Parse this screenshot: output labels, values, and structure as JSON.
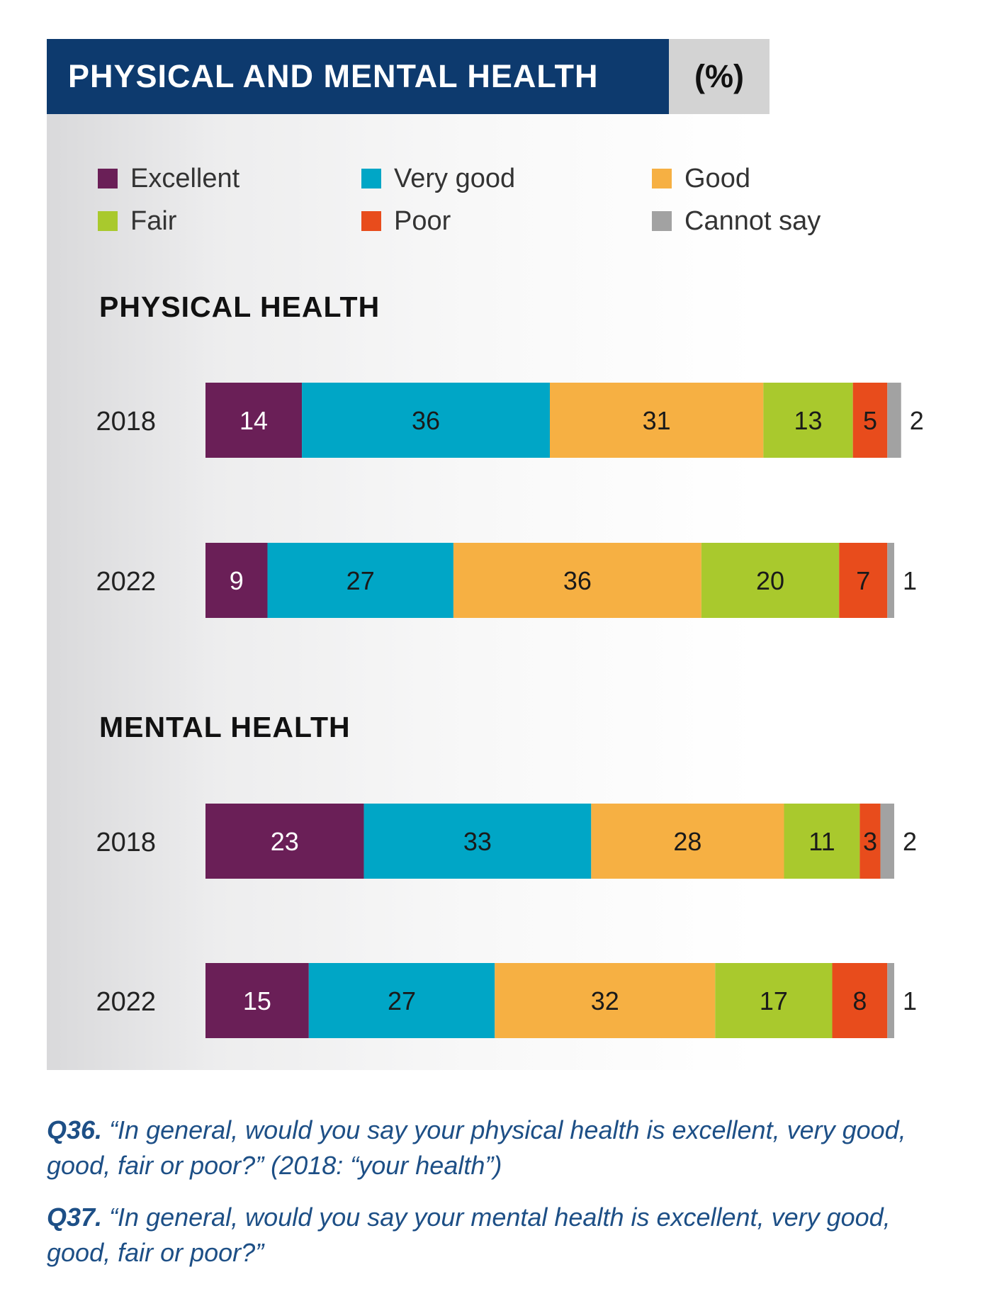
{
  "title": "PHYSICAL AND MENTAL HEALTH",
  "unit": "(%)",
  "legend": [
    {
      "label": "Excellent",
      "color": "#6a1f57"
    },
    {
      "label": "Very good",
      "color": "#00a6c6"
    },
    {
      "label": "Good",
      "color": "#f6b043"
    },
    {
      "label": "Fair",
      "color": "#a9c92d"
    },
    {
      "label": "Poor",
      "color": "#e84c1c"
    },
    {
      "label": "Cannot say",
      "color": "#a2a2a2"
    }
  ],
  "sections": {
    "physical": "PHYSICAL HEALTH",
    "mental": "MENTAL HEALTH"
  },
  "chart_data": {
    "type": "bar",
    "orientation": "horizontal",
    "stacked": true,
    "unit": "%",
    "categories": [
      "Excellent",
      "Very good",
      "Good",
      "Fair",
      "Poor",
      "Cannot say"
    ],
    "groups": [
      {
        "title": "PHYSICAL HEALTH",
        "rows": [
          {
            "label": "2018",
            "values": [
              14,
              36,
              31,
              13,
              5,
              2
            ]
          },
          {
            "label": "2022",
            "values": [
              9,
              27,
              36,
              20,
              7,
              1
            ]
          }
        ]
      },
      {
        "title": "MENTAL HEALTH",
        "rows": [
          {
            "label": "2018",
            "values": [
              23,
              33,
              28,
              11,
              3,
              2
            ]
          },
          {
            "label": "2022",
            "values": [
              15,
              27,
              32,
              17,
              8,
              1
            ]
          }
        ]
      }
    ]
  },
  "footnotes": [
    {
      "qnum": "Q36.",
      "text": "“In general, would you say your physical health is excellent, very good, good, fair or poor?” (2018: “your health”)"
    },
    {
      "qnum": "Q37.",
      "text": "“In general, would you say your mental health is excellent, very good, good, fair or poor?”"
    }
  ]
}
